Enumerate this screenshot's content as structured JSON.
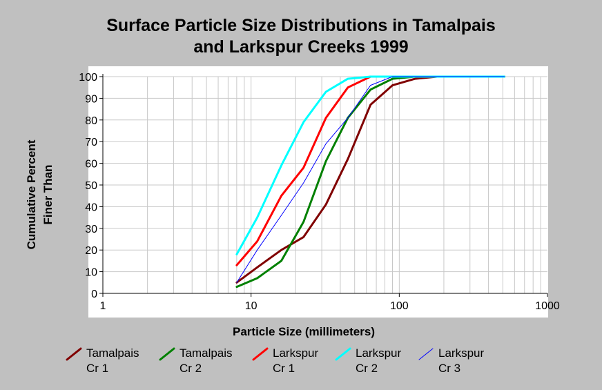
{
  "chart_data": {
    "type": "line",
    "title": [
      "Surface Particle Size Distributions in Tamalpais",
      "and Larkspur Creeks 1999"
    ],
    "xlabel": "Particle Size (millimeters)",
    "ylabel": [
      "Cumulative Percent",
      "Finer Than"
    ],
    "xscale": "log",
    "xlim": [
      1,
      1000
    ],
    "ylim": [
      0,
      100
    ],
    "xticks": [
      "1",
      "10",
      "100",
      "1000"
    ],
    "yticks": [
      "0",
      "10",
      "20",
      "30",
      "40",
      "50",
      "60",
      "70",
      "80",
      "90",
      "100"
    ],
    "grid": true,
    "legend_position": "bottom",
    "series": [
      {
        "name": [
          "Tamalpais",
          "Cr 1"
        ],
        "color": "#800000",
        "width": 3,
        "points": [
          [
            8,
            5
          ],
          [
            11,
            12
          ],
          [
            16,
            20
          ],
          [
            22.6,
            26
          ],
          [
            32,
            41
          ],
          [
            45,
            62
          ],
          [
            64,
            87
          ],
          [
            90,
            96
          ],
          [
            128,
            99
          ],
          [
            180,
            100
          ],
          [
            256,
            100
          ],
          [
            512,
            100
          ]
        ]
      },
      {
        "name": [
          "Tamalpais",
          "Cr 2"
        ],
        "color": "#008000",
        "width": 3,
        "points": [
          [
            8,
            3
          ],
          [
            11,
            7
          ],
          [
            16,
            15
          ],
          [
            22.6,
            33
          ],
          [
            32,
            61
          ],
          [
            45,
            81
          ],
          [
            64,
            94
          ],
          [
            90,
            99
          ],
          [
            128,
            100
          ],
          [
            180,
            100
          ],
          [
            256,
            100
          ],
          [
            512,
            100
          ]
        ]
      },
      {
        "name": [
          "Larkspur",
          "Cr 1"
        ],
        "color": "#ff0000",
        "width": 3,
        "points": [
          [
            8,
            13
          ],
          [
            11,
            24
          ],
          [
            16,
            45
          ],
          [
            22.6,
            58
          ],
          [
            32,
            81
          ],
          [
            45,
            95
          ],
          [
            64,
            100
          ],
          [
            90,
            100
          ],
          [
            128,
            100
          ],
          [
            256,
            100
          ],
          [
            512,
            100
          ]
        ]
      },
      {
        "name": [
          "Larkspur",
          "Cr 2"
        ],
        "color": "#00ffff",
        "width": 3,
        "points": [
          [
            8,
            18
          ],
          [
            11,
            35
          ],
          [
            16,
            59
          ],
          [
            22.6,
            79
          ],
          [
            32,
            93
          ],
          [
            45,
            99
          ],
          [
            64,
            100
          ],
          [
            90,
            100
          ],
          [
            128,
            100
          ],
          [
            256,
            100
          ],
          [
            512,
            100
          ]
        ]
      },
      {
        "name": [
          "Larkspur",
          "Cr 3"
        ],
        "color": "#0000ff",
        "width": 1,
        "points": [
          [
            8,
            5
          ],
          [
            11,
            20
          ],
          [
            16,
            36
          ],
          [
            22.6,
            51
          ],
          [
            32,
            69
          ],
          [
            45,
            81
          ],
          [
            64,
            96
          ],
          [
            90,
            100
          ],
          [
            128,
            100
          ],
          [
            256,
            100
          ],
          [
            512,
            100
          ]
        ]
      }
    ]
  }
}
